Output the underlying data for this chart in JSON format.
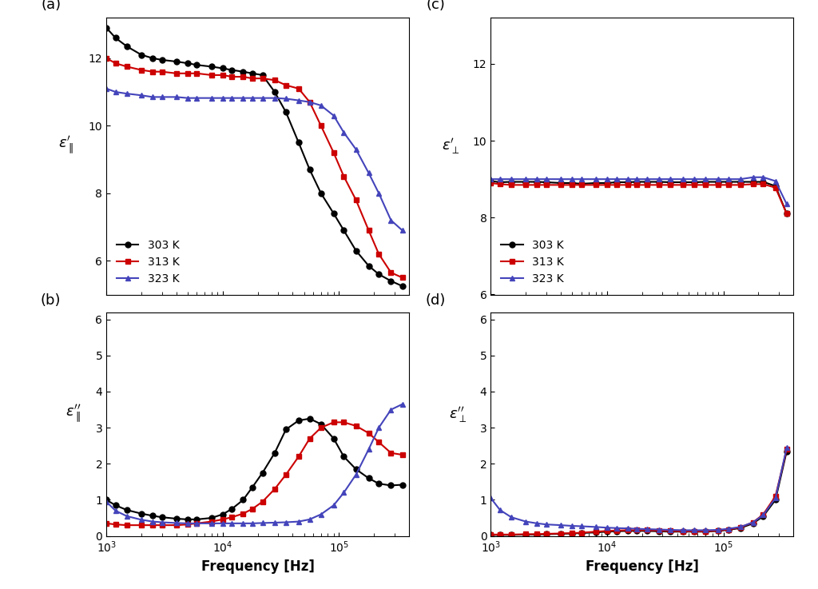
{
  "colors": {
    "303K": "#000000",
    "313K": "#cc0000",
    "323K": "#4444bb"
  },
  "panel_labels": [
    "(a)",
    "(b)",
    "(c)",
    "(d)"
  ],
  "xlabel": "Frequency [Hz]",
  "xlim": [
    1000,
    400000
  ],
  "a_303K_x": [
    1000,
    1200,
    1500,
    2000,
    2500,
    3000,
    4000,
    5000,
    6000,
    8000,
    10000,
    12000,
    15000,
    18000,
    22000,
    28000,
    35000,
    45000,
    56000,
    70000,
    90000,
    110000,
    140000,
    180000,
    220000,
    280000,
    350000
  ],
  "a_303K_y": [
    12.9,
    12.6,
    12.35,
    12.1,
    12.0,
    11.95,
    11.9,
    11.85,
    11.8,
    11.75,
    11.7,
    11.65,
    11.6,
    11.55,
    11.5,
    11.0,
    10.4,
    9.5,
    8.7,
    8.0,
    7.4,
    6.9,
    6.3,
    5.85,
    5.6,
    5.4,
    5.25
  ],
  "a_313K_x": [
    1000,
    1200,
    1500,
    2000,
    2500,
    3000,
    4000,
    5000,
    6000,
    8000,
    10000,
    12000,
    15000,
    18000,
    22000,
    28000,
    35000,
    45000,
    56000,
    70000,
    90000,
    110000,
    140000,
    180000,
    220000,
    280000,
    350000
  ],
  "a_313K_y": [
    12.0,
    11.85,
    11.75,
    11.65,
    11.6,
    11.6,
    11.55,
    11.55,
    11.55,
    11.5,
    11.5,
    11.45,
    11.45,
    11.4,
    11.4,
    11.35,
    11.2,
    11.1,
    10.7,
    10.0,
    9.2,
    8.5,
    7.8,
    6.9,
    6.2,
    5.65,
    5.5
  ],
  "a_323K_x": [
    1000,
    1200,
    1500,
    2000,
    2500,
    3000,
    4000,
    5000,
    6000,
    8000,
    10000,
    12000,
    15000,
    18000,
    22000,
    28000,
    35000,
    45000,
    56000,
    70000,
    90000,
    110000,
    140000,
    180000,
    220000,
    280000,
    350000
  ],
  "a_323K_y": [
    11.1,
    11.0,
    10.95,
    10.9,
    10.85,
    10.85,
    10.85,
    10.82,
    10.82,
    10.82,
    10.82,
    10.82,
    10.82,
    10.82,
    10.82,
    10.82,
    10.8,
    10.75,
    10.7,
    10.6,
    10.3,
    9.8,
    9.3,
    8.6,
    8.0,
    7.2,
    6.9
  ],
  "b_303K_x": [
    1000,
    1200,
    1500,
    2000,
    2500,
    3000,
    4000,
    5000,
    6000,
    8000,
    10000,
    12000,
    15000,
    18000,
    22000,
    28000,
    35000,
    45000,
    56000,
    70000,
    90000,
    110000,
    140000,
    180000,
    220000,
    280000,
    350000
  ],
  "b_303K_y": [
    1.0,
    0.85,
    0.72,
    0.62,
    0.56,
    0.52,
    0.48,
    0.46,
    0.46,
    0.5,
    0.6,
    0.75,
    1.0,
    1.35,
    1.75,
    2.3,
    2.95,
    3.2,
    3.25,
    3.1,
    2.7,
    2.2,
    1.85,
    1.6,
    1.45,
    1.4,
    1.42
  ],
  "b_313K_x": [
    1000,
    1200,
    1500,
    2000,
    2500,
    3000,
    4000,
    5000,
    6000,
    8000,
    10000,
    12000,
    15000,
    18000,
    22000,
    28000,
    35000,
    45000,
    56000,
    70000,
    90000,
    110000,
    140000,
    180000,
    220000,
    280000,
    350000
  ],
  "b_313K_y": [
    0.35,
    0.32,
    0.3,
    0.3,
    0.3,
    0.3,
    0.3,
    0.32,
    0.35,
    0.4,
    0.46,
    0.52,
    0.62,
    0.75,
    0.95,
    1.3,
    1.7,
    2.2,
    2.7,
    3.0,
    3.15,
    3.15,
    3.05,
    2.85,
    2.6,
    2.3,
    2.25
  ],
  "b_323K_x": [
    1000,
    1200,
    1500,
    2000,
    2500,
    3000,
    4000,
    5000,
    6000,
    8000,
    10000,
    12000,
    15000,
    18000,
    22000,
    28000,
    35000,
    45000,
    56000,
    70000,
    90000,
    110000,
    140000,
    180000,
    220000,
    280000,
    350000
  ],
  "b_323K_y": [
    0.95,
    0.7,
    0.55,
    0.45,
    0.4,
    0.38,
    0.36,
    0.35,
    0.35,
    0.35,
    0.35,
    0.35,
    0.35,
    0.35,
    0.36,
    0.37,
    0.38,
    0.4,
    0.46,
    0.6,
    0.85,
    1.2,
    1.7,
    2.4,
    3.0,
    3.5,
    3.65
  ],
  "c_303K_x": [
    1000,
    1200,
    1500,
    2000,
    2500,
    3000,
    4000,
    5000,
    6000,
    8000,
    10000,
    12000,
    15000,
    18000,
    22000,
    28000,
    35000,
    45000,
    56000,
    70000,
    90000,
    110000,
    140000,
    180000,
    220000,
    280000,
    350000
  ],
  "c_303K_y": [
    8.95,
    8.92,
    8.93,
    8.93,
    8.93,
    8.92,
    8.9,
    8.9,
    8.88,
    8.9,
    8.9,
    8.92,
    8.92,
    8.93,
    8.93,
    8.93,
    8.92,
    8.92,
    8.92,
    8.93,
    8.93,
    8.93,
    8.93,
    8.93,
    8.93,
    8.82,
    8.1
  ],
  "c_313K_x": [
    1000,
    1200,
    1500,
    2000,
    2500,
    3000,
    4000,
    5000,
    6000,
    8000,
    10000,
    12000,
    15000,
    18000,
    22000,
    28000,
    35000,
    45000,
    56000,
    70000,
    90000,
    110000,
    140000,
    180000,
    220000,
    280000,
    350000
  ],
  "c_313K_y": [
    8.9,
    8.87,
    8.85,
    8.85,
    8.85,
    8.85,
    8.85,
    8.85,
    8.85,
    8.85,
    8.85,
    8.85,
    8.85,
    8.85,
    8.85,
    8.85,
    8.85,
    8.85,
    8.85,
    8.85,
    8.85,
    8.85,
    8.85,
    8.87,
    8.87,
    8.78,
    8.1
  ],
  "c_323K_x": [
    1000,
    1200,
    1500,
    2000,
    2500,
    3000,
    4000,
    5000,
    6000,
    8000,
    10000,
    12000,
    15000,
    18000,
    22000,
    28000,
    35000,
    45000,
    56000,
    70000,
    90000,
    110000,
    140000,
    180000,
    220000,
    280000,
    350000
  ],
  "c_323K_y": [
    9.0,
    9.0,
    9.0,
    9.0,
    9.0,
    9.0,
    9.0,
    9.0,
    9.0,
    9.0,
    9.0,
    9.0,
    9.0,
    9.0,
    9.0,
    9.0,
    9.0,
    9.0,
    9.0,
    9.0,
    9.0,
    9.0,
    9.0,
    9.05,
    9.05,
    8.95,
    8.35
  ],
  "d_303K_x": [
    1000,
    1200,
    1500,
    2000,
    2500,
    3000,
    4000,
    5000,
    6000,
    8000,
    10000,
    12000,
    15000,
    18000,
    22000,
    28000,
    35000,
    45000,
    56000,
    70000,
    90000,
    110000,
    140000,
    180000,
    220000,
    280000,
    350000
  ],
  "d_303K_y": [
    0.03,
    0.03,
    0.03,
    0.04,
    0.04,
    0.05,
    0.06,
    0.07,
    0.08,
    0.1,
    0.12,
    0.13,
    0.14,
    0.14,
    0.14,
    0.13,
    0.12,
    0.12,
    0.12,
    0.12,
    0.14,
    0.17,
    0.22,
    0.35,
    0.55,
    1.0,
    2.35
  ],
  "d_313K_x": [
    1000,
    1200,
    1500,
    2000,
    2500,
    3000,
    4000,
    5000,
    6000,
    8000,
    10000,
    12000,
    15000,
    18000,
    22000,
    28000,
    35000,
    45000,
    56000,
    70000,
    90000,
    110000,
    140000,
    180000,
    220000,
    280000,
    350000
  ],
  "d_313K_y": [
    0.04,
    0.04,
    0.04,
    0.05,
    0.05,
    0.06,
    0.07,
    0.08,
    0.09,
    0.12,
    0.14,
    0.15,
    0.16,
    0.16,
    0.16,
    0.15,
    0.14,
    0.13,
    0.13,
    0.13,
    0.15,
    0.18,
    0.24,
    0.38,
    0.6,
    1.1,
    2.4
  ],
  "d_323K_x": [
    1000,
    1200,
    1500,
    2000,
    2500,
    3000,
    4000,
    5000,
    6000,
    8000,
    10000,
    12000,
    15000,
    18000,
    22000,
    28000,
    35000,
    45000,
    56000,
    70000,
    90000,
    110000,
    140000,
    180000,
    220000,
    280000,
    350000
  ],
  "d_323K_y": [
    1.05,
    0.72,
    0.52,
    0.4,
    0.35,
    0.32,
    0.3,
    0.28,
    0.27,
    0.25,
    0.23,
    0.22,
    0.21,
    0.2,
    0.19,
    0.18,
    0.17,
    0.16,
    0.16,
    0.16,
    0.17,
    0.2,
    0.25,
    0.38,
    0.58,
    1.05,
    2.45
  ],
  "a_ylim": [
    5.0,
    13.2
  ],
  "b_ylim": [
    0,
    6.2
  ],
  "c_ylim": [
    6.0,
    13.2
  ],
  "d_ylim": [
    0,
    6.2
  ],
  "a_yticks": [
    6,
    8,
    10,
    12
  ],
  "b_yticks": [
    0,
    1,
    2,
    3,
    4,
    5,
    6
  ],
  "c_yticks": [
    6,
    8,
    10,
    12
  ],
  "d_yticks": [
    0,
    1,
    2,
    3,
    4,
    5,
    6
  ],
  "legend_labels": [
    "303 K",
    "313 K",
    "323 K"
  ],
  "marker_303K": "o",
  "marker_313K": "s",
  "marker_323K": "^",
  "markersize": 5,
  "linewidth": 1.5
}
